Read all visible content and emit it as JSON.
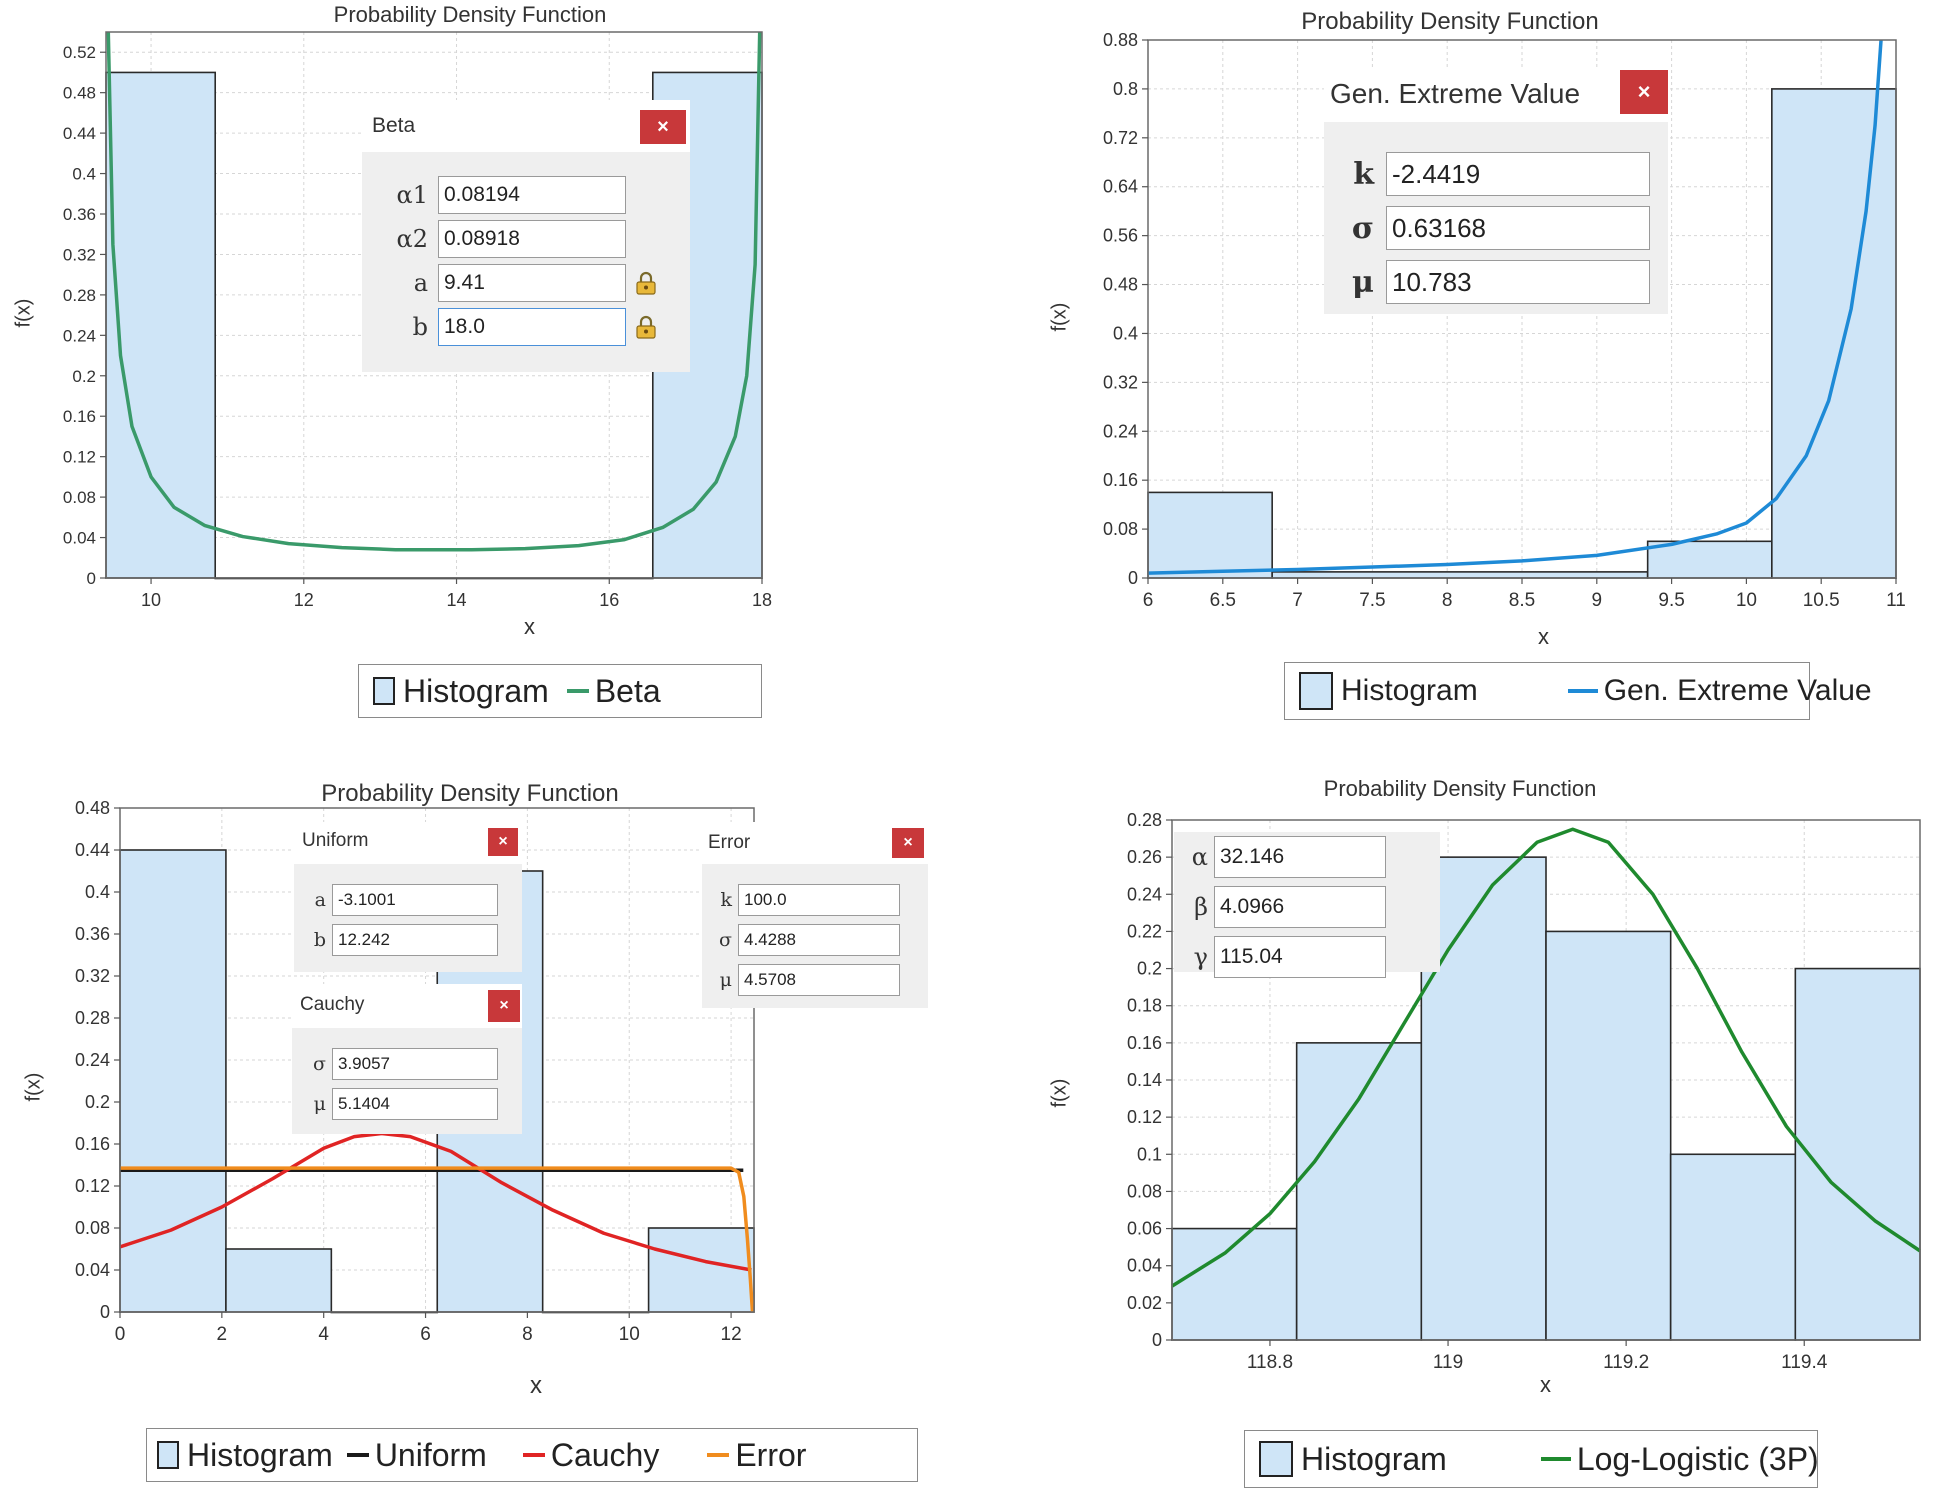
{
  "chart_data": [
    {
      "type": "bar",
      "title": "Probability Density Function",
      "xlabel": "x",
      "ylabel": "f(x)",
      "xlim": [
        9.41,
        18.0
      ],
      "ylim": [
        0,
        0.54
      ],
      "xticks": [
        10,
        12,
        14,
        16,
        18
      ],
      "yticks": [
        0,
        0.04,
        0.08,
        0.12,
        0.16,
        0.2,
        0.24,
        0.28,
        0.32,
        0.36,
        0.4,
        0.44,
        0.48,
        0.52
      ],
      "histogram": [
        {
          "x0": 9.41,
          "x1": 10.84,
          "value": 0.5
        },
        {
          "x0": 10.84,
          "x1": 16.57,
          "value": 0.0
        },
        {
          "x0": 16.57,
          "x1": 18.0,
          "value": 0.5
        }
      ],
      "curve": {
        "name": "Beta",
        "color": "#3a9a6a",
        "x": [
          9.44,
          9.5,
          9.6,
          9.75,
          10.0,
          10.3,
          10.7,
          11.2,
          11.8,
          12.5,
          13.2,
          13.7,
          14.2,
          14.9,
          15.6,
          16.2,
          16.7,
          17.1,
          17.4,
          17.65,
          17.8,
          17.91,
          17.97
        ],
        "y": [
          0.54,
          0.33,
          0.22,
          0.15,
          0.1,
          0.07,
          0.052,
          0.041,
          0.034,
          0.03,
          0.028,
          0.028,
          0.028,
          0.029,
          0.032,
          0.038,
          0.05,
          0.068,
          0.095,
          0.14,
          0.2,
          0.31,
          0.54
        ]
      },
      "legend": [
        "Histogram",
        "Beta"
      ],
      "dialog": {
        "title": "Beta",
        "close": "×",
        "params": [
          {
            "label": "α1",
            "value": "0.08194",
            "locked": false
          },
          {
            "label": "α2",
            "value": "0.08918",
            "locked": false
          },
          {
            "label": "a",
            "value": "9.41",
            "locked": true
          },
          {
            "label": "b",
            "value": "18.0",
            "locked": true,
            "active": true
          }
        ]
      }
    },
    {
      "type": "bar",
      "title": "Probability Density Function",
      "xlabel": "x",
      "ylabel": "f(x)",
      "xlim": [
        6.0,
        11.0
      ],
      "ylim": [
        0,
        0.88
      ],
      "xticks": [
        6,
        6.5,
        7,
        7.5,
        8,
        8.5,
        9,
        9.5,
        10,
        10.5,
        11
      ],
      "yticks": [
        0,
        0.08,
        0.16,
        0.24,
        0.32,
        0.4,
        0.48,
        0.56,
        0.64,
        0.72,
        0.8,
        0.88
      ],
      "histogram": [
        {
          "x0": 6.0,
          "x1": 6.83,
          "value": 0.14
        },
        {
          "x0": 6.83,
          "x1": 9.34,
          "value": 0.01
        },
        {
          "x0": 9.34,
          "x1": 10.17,
          "value": 0.06
        },
        {
          "x0": 10.17,
          "x1": 11.0,
          "value": 0.8
        }
      ],
      "curve": {
        "name": "Gen. Extreme Value",
        "color": "#1e8ad6",
        "x": [
          6.0,
          6.5,
          7.0,
          7.5,
          8.0,
          8.5,
          9.0,
          9.5,
          9.8,
          10.0,
          10.2,
          10.4,
          10.55,
          10.7,
          10.8,
          10.86,
          10.9
        ],
        "y": [
          0.008,
          0.011,
          0.014,
          0.018,
          0.022,
          0.028,
          0.037,
          0.055,
          0.072,
          0.09,
          0.13,
          0.2,
          0.29,
          0.44,
          0.6,
          0.74,
          0.88
        ]
      },
      "legend": [
        "Histogram",
        "Gen. Extreme Value"
      ],
      "dialog": {
        "title": "Gen. Extreme Value",
        "close": "×",
        "params": [
          {
            "label": "k",
            "value": "-2.4419"
          },
          {
            "label": "σ",
            "value": "0.63168"
          },
          {
            "label": "μ",
            "value": "10.783",
            "active": true
          }
        ]
      }
    },
    {
      "type": "bar",
      "title": "Probability Density Function",
      "xlabel": "x",
      "ylabel": "f(x)",
      "xlim": [
        0,
        12.45
      ],
      "ylim": [
        0,
        0.48
      ],
      "xticks": [
        0,
        2,
        4,
        6,
        8,
        10,
        12
      ],
      "yticks": [
        0,
        0.04,
        0.08,
        0.12,
        0.16,
        0.2,
        0.24,
        0.28,
        0.32,
        0.36,
        0.4,
        0.44,
        0.48
      ],
      "histogram": [
        {
          "x0": 0.0,
          "x1": 2.08,
          "value": 0.44
        },
        {
          "x0": 2.08,
          "x1": 4.15,
          "value": 0.06
        },
        {
          "x0": 4.15,
          "x1": 6.23,
          "value": 0.0
        },
        {
          "x0": 6.23,
          "x1": 8.3,
          "value": 0.42
        },
        {
          "x0": 8.3,
          "x1": 10.38,
          "value": 0.0
        },
        {
          "x0": 10.38,
          "x1": 12.45,
          "value": 0.08
        }
      ],
      "curves": [
        {
          "name": "Uniform",
          "color": "#1a1a1a",
          "x": [
            0.0,
            12.24
          ],
          "y": [
            0.135,
            0.135
          ]
        },
        {
          "name": "Cauchy",
          "color": "#e02424",
          "x": [
            0.0,
            1.0,
            2.0,
            3.0,
            4.0,
            4.6,
            5.14,
            5.7,
            6.5,
            7.5,
            8.5,
            9.5,
            10.5,
            11.5,
            12.4
          ],
          "y": [
            0.062,
            0.078,
            0.1,
            0.127,
            0.156,
            0.167,
            0.17,
            0.167,
            0.153,
            0.123,
            0.097,
            0.075,
            0.06,
            0.048,
            0.04
          ]
        },
        {
          "name": "Error",
          "color": "#f08c1e",
          "x": [
            0.0,
            12.0,
            12.15,
            12.25,
            12.32,
            12.38,
            12.42
          ],
          "y": [
            0.137,
            0.137,
            0.133,
            0.11,
            0.07,
            0.03,
            0.0
          ]
        }
      ],
      "legend": [
        "Histogram",
        "Uniform",
        "Cauchy",
        "Error"
      ],
      "dialogs": [
        {
          "title": "Uniform",
          "close": "×",
          "params": [
            {
              "label": "a",
              "value": "-3.1001"
            },
            {
              "label": "b",
              "value": "12.242"
            }
          ]
        },
        {
          "title": "Error",
          "close": "×",
          "params": [
            {
              "label": "k",
              "value": "100.0"
            },
            {
              "label": "σ",
              "value": "4.4288"
            },
            {
              "label": "μ",
              "value": "4.5708"
            }
          ]
        },
        {
          "title": "Cauchy",
          "close": "×",
          "params": [
            {
              "label": "σ",
              "value": "3.9057"
            },
            {
              "label": "μ",
              "value": "5.1404"
            }
          ]
        }
      ]
    },
    {
      "type": "bar",
      "title": "Probability Density Function",
      "xlabel": "x",
      "ylabel": "f(x)",
      "xlim": [
        118.69,
        119.53
      ],
      "ylim": [
        0,
        0.28
      ],
      "xticks": [
        118.8,
        119,
        119.2,
        119.4
      ],
      "yticks": [
        0,
        0.02,
        0.04,
        0.06,
        0.08,
        0.1,
        0.12,
        0.14,
        0.16,
        0.18,
        0.2,
        0.22,
        0.24,
        0.26,
        0.28
      ],
      "histogram": [
        {
          "x0": 118.69,
          "x1": 118.83,
          "value": 0.06
        },
        {
          "x0": 118.83,
          "x1": 118.97,
          "value": 0.16
        },
        {
          "x0": 118.97,
          "x1": 119.11,
          "value": 0.26
        },
        {
          "x0": 119.11,
          "x1": 119.25,
          "value": 0.22
        },
        {
          "x0": 119.25,
          "x1": 119.39,
          "value": 0.1
        },
        {
          "x0": 119.39,
          "x1": 119.53,
          "value": 0.2
        }
      ],
      "curve": {
        "name": "Log-Logistic (3P)",
        "color": "#1f8a2e",
        "x": [
          118.69,
          118.75,
          118.8,
          118.85,
          118.9,
          118.95,
          119.0,
          119.05,
          119.1,
          119.14,
          119.18,
          119.23,
          119.28,
          119.33,
          119.38,
          119.43,
          119.48,
          119.53
        ],
        "y": [
          0.029,
          0.047,
          0.068,
          0.096,
          0.13,
          0.17,
          0.21,
          0.245,
          0.268,
          0.275,
          0.268,
          0.24,
          0.2,
          0.155,
          0.115,
          0.085,
          0.064,
          0.048
        ]
      },
      "legend": [
        "Histogram",
        "Log-Logistic (3P)"
      ],
      "dialog": {
        "params": [
          {
            "label": "α",
            "value": "32.146"
          },
          {
            "label": "β",
            "value": "4.0966"
          },
          {
            "label": "γ",
            "value": "115.04"
          }
        ]
      }
    }
  ]
}
